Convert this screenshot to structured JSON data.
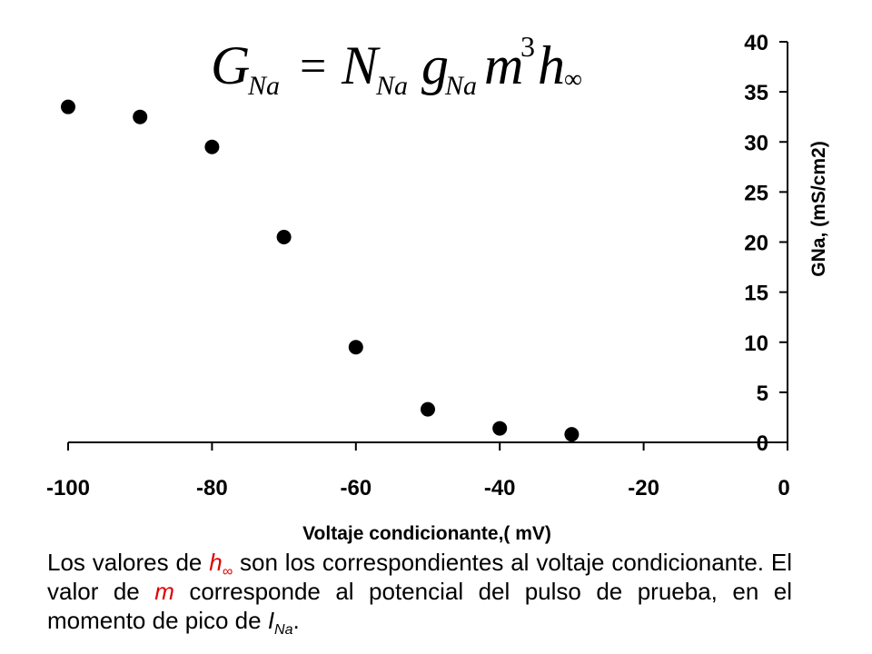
{
  "equation": {
    "G": "G",
    "Na1": "Na",
    "eq": "=",
    "N": "N",
    "Na2": "Na",
    "g": "g",
    "Na3": "Na",
    "m": "m",
    "exp": "3",
    "h": "h",
    "inf": "∞"
  },
  "chart_data": {
    "type": "scatter",
    "x": [
      -100,
      -90,
      -80,
      -70,
      -60,
      -50,
      -40,
      -30
    ],
    "y": [
      33.5,
      32.5,
      29.5,
      20.5,
      9.5,
      3.3,
      1.4,
      0.8
    ],
    "xlabel": "Voltaje condicionante,( mV)",
    "ylabel": "GNa, (mS/cm2)",
    "xlim": [
      -100,
      0
    ],
    "ylim": [
      0,
      40
    ],
    "xticks": [
      -100,
      -80,
      -60,
      -40,
      -20,
      0
    ],
    "xtick_labels": [
      "-100",
      "-80",
      "-60",
      "-40",
      "-20",
      "0"
    ],
    "yticks": [
      0,
      5,
      10,
      15,
      20,
      25,
      30,
      35,
      40
    ],
    "ytick_labels": [
      "0",
      "5",
      "10",
      "15",
      "20",
      "25",
      "30",
      "35",
      "40"
    ],
    "grid": false,
    "marker_color": "#000000"
  },
  "caption": {
    "t1": "Los valores de ",
    "h": "h",
    "inf": "∞",
    "t2": " son los correspondientes al voltaje condicionante. El valor de ",
    "m": "m",
    "t3": " corresponde al potencial del pulso de prueba, en el momento de pico de ",
    "I": "I",
    "Na": "Na",
    "t4": "."
  }
}
